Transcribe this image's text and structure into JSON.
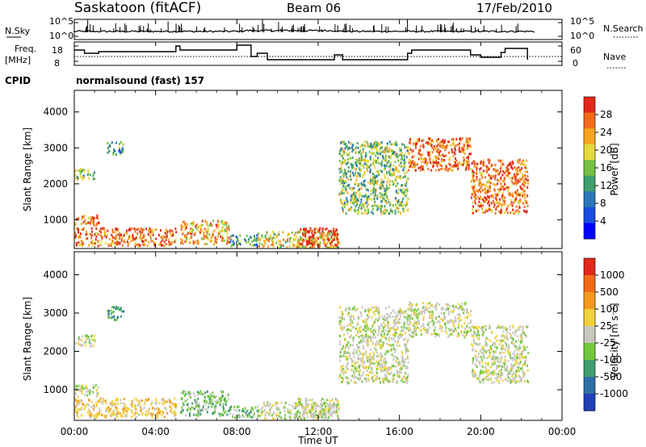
{
  "header": {
    "station": "Saskatoon (fitACF)",
    "beam": "Beam 06",
    "date": "17/Feb/2010",
    "cpid_label": "CPID",
    "cpid_value": "normalsound (fast) 157"
  },
  "noise_panel": {
    "left_label": "N.Sky",
    "right_label": "N.Search",
    "left_ticks": [
      "10^5",
      "10^0"
    ],
    "right_ticks": [
      "10^5",
      "10^0"
    ]
  },
  "freq_panel": {
    "left_label_1": "Freq.",
    "left_label_2": "[MHz]",
    "right_label": "Nave",
    "left_ticks": [
      "18",
      "8"
    ],
    "right_ticks": [
      "60",
      "0"
    ]
  },
  "chart_data": [
    {
      "type": "heatmap",
      "name": "power",
      "ylabel": "Slant Range [km]",
      "xlabel": "",
      "yticks": [
        "1000",
        "2000",
        "3000",
        "4000"
      ],
      "ylim": [
        200,
        4600
      ],
      "xlim": [
        0,
        24
      ],
      "colorbar": {
        "label": "Power [dB]",
        "ticks": [
          "28",
          "24",
          "20",
          "16",
          "12",
          "8",
          "4"
        ],
        "colors": [
          "#0000ff",
          "#1a4ee0",
          "#2b78b8",
          "#3f9f6e",
          "#76c043",
          "#e4d93a",
          "#f7a51f",
          "#f26b1d",
          "#e2281b"
        ]
      },
      "regions": [
        {
          "t0": 0.0,
          "t1": 5.0,
          "r0": 300,
          "r1": 800,
          "level": 7
        },
        {
          "t0": 0.0,
          "t1": 1.2,
          "r0": 850,
          "r1": 1150,
          "level": 7
        },
        {
          "t0": 0.0,
          "t1": 1.0,
          "r0": 2150,
          "r1": 2450,
          "level": 4
        },
        {
          "t0": 1.6,
          "t1": 2.4,
          "r0": 2850,
          "r1": 3200,
          "level": 3
        },
        {
          "t0": 5.2,
          "t1": 7.6,
          "r0": 350,
          "r1": 1000,
          "level": 6
        },
        {
          "t0": 7.6,
          "t1": 9.0,
          "r0": 300,
          "r1": 600,
          "level": 3
        },
        {
          "t0": 9.0,
          "t1": 13.0,
          "r0": 250,
          "r1": 700,
          "level": 5
        },
        {
          "t0": 11.0,
          "t1": 13.0,
          "r0": 300,
          "r1": 800,
          "level": 8
        },
        {
          "t0": 13.0,
          "t1": 16.4,
          "r0": 1200,
          "r1": 3200,
          "level": 4
        },
        {
          "t0": 16.4,
          "t1": 19.5,
          "r0": 2400,
          "r1": 3300,
          "level": 7
        },
        {
          "t0": 19.5,
          "t1": 22.3,
          "r0": 1200,
          "r1": 2700,
          "level": 7
        }
      ]
    },
    {
      "type": "heatmap",
      "name": "velocity",
      "ylabel": "Slant Range [km]",
      "xlabel": "Time UT",
      "yticks": [
        "1000",
        "2000",
        "3000",
        "4000"
      ],
      "ylim": [
        200,
        4600
      ],
      "xlim": [
        0,
        24
      ],
      "xticks": [
        "00:00",
        "04:00",
        "08:00",
        "12:00",
        "16:00",
        "20:00",
        "00:00"
      ],
      "colorbar": {
        "label": "Velocity [m s⁻¹]",
        "ticks": [
          "1000",
          "500",
          "100",
          "25",
          "-25",
          "-100",
          "-500",
          "-1000"
        ],
        "colors": [
          "#2140b8",
          "#2f6fa5",
          "#3f9f6e",
          "#72c83d",
          "#c8c8c0",
          "#f0d23a",
          "#f39a1e",
          "#f06a1a",
          "#e2281b"
        ]
      },
      "regions": [
        {
          "t0": 0.0,
          "t1": 5.0,
          "r0": 300,
          "r1": 800,
          "level": 5
        },
        {
          "t0": 0.0,
          "t1": 1.2,
          "r0": 850,
          "r1": 1150,
          "level": 4
        },
        {
          "t0": 0.0,
          "t1": 1.0,
          "r0": 2150,
          "r1": 2450,
          "level": 4
        },
        {
          "t0": 1.6,
          "t1": 2.4,
          "r0": 2850,
          "r1": 3200,
          "level": 2
        },
        {
          "t0": 5.2,
          "t1": 7.6,
          "r0": 350,
          "r1": 1000,
          "level": 3
        },
        {
          "t0": 7.6,
          "t1": 9.0,
          "r0": 300,
          "r1": 600,
          "level": 3
        },
        {
          "t0": 9.0,
          "t1": 13.0,
          "r0": 250,
          "r1": 700,
          "level": 4
        },
        {
          "t0": 11.0,
          "t1": 13.0,
          "r0": 300,
          "r1": 800,
          "level": 4
        },
        {
          "t0": 13.0,
          "t1": 16.4,
          "r0": 1200,
          "r1": 3200,
          "level": 4
        },
        {
          "t0": 16.4,
          "t1": 19.5,
          "r0": 2400,
          "r1": 3300,
          "level": 4
        },
        {
          "t0": 19.5,
          "t1": 22.3,
          "r0": 1200,
          "r1": 2700,
          "level": 4
        }
      ]
    }
  ]
}
